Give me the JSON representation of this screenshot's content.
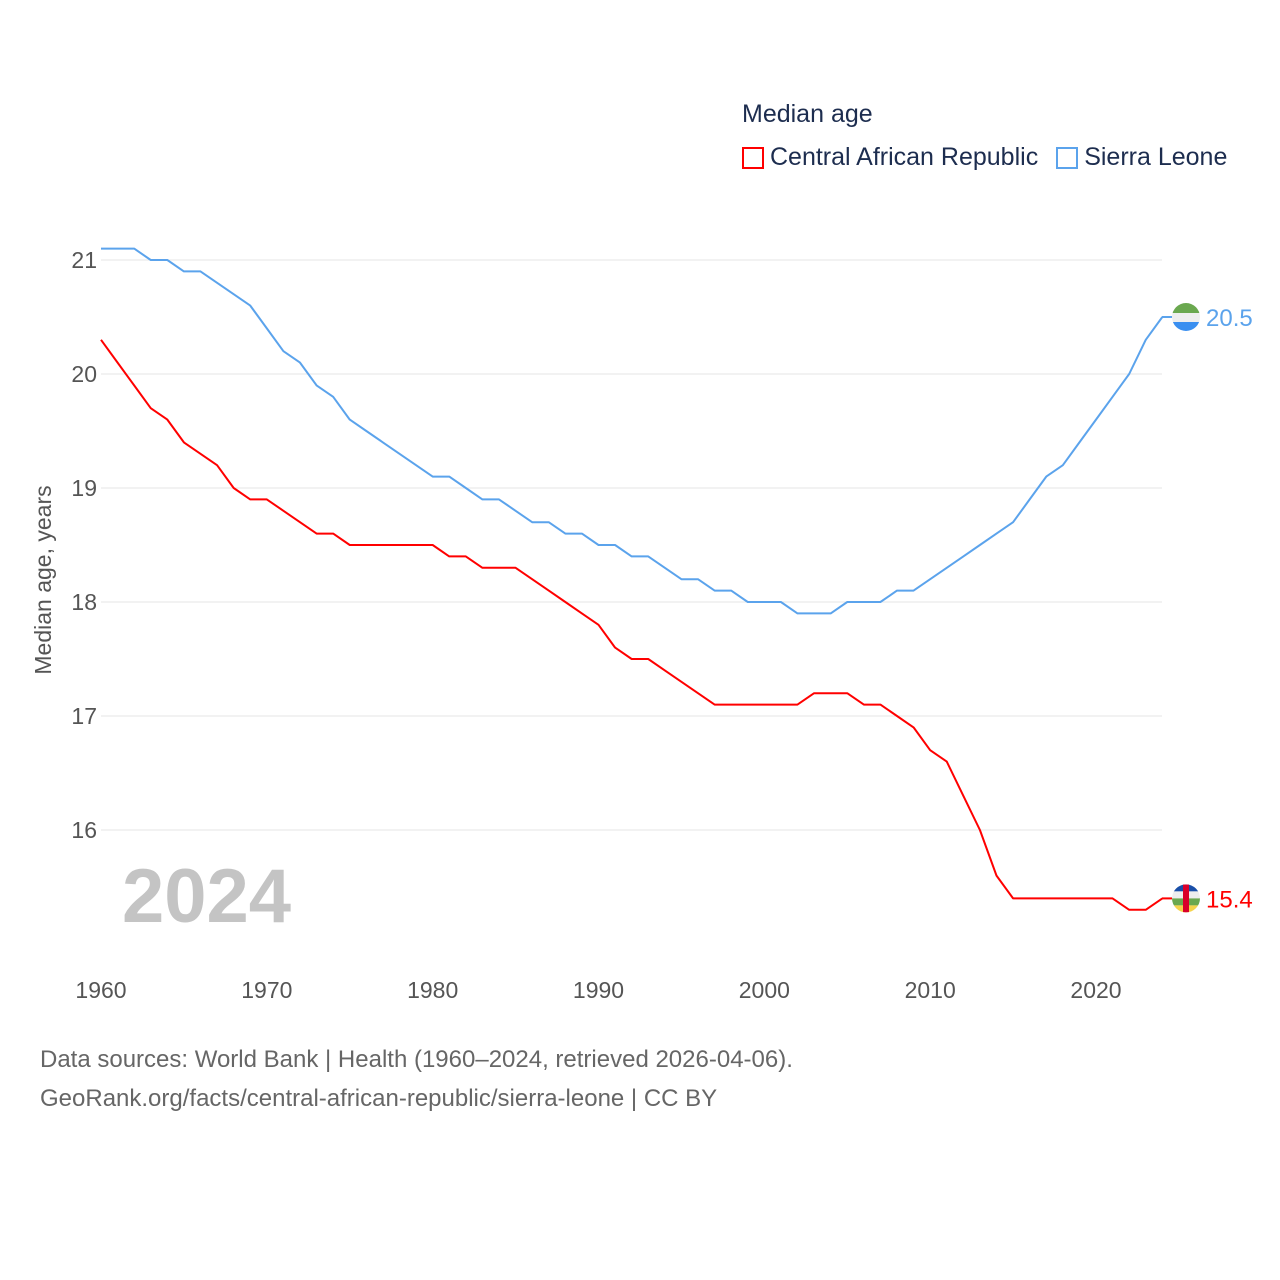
{
  "chart_data": {
    "type": "line",
    "title": "Median age",
    "xlabel": "",
    "ylabel": "Median age, years",
    "xlim": [
      1960,
      2024
    ],
    "ylim": [
      15,
      21.3
    ],
    "x_ticks": [
      1960,
      1970,
      1980,
      1990,
      2000,
      2010,
      2020
    ],
    "y_ticks": [
      16,
      17,
      18,
      19,
      20,
      21
    ],
    "grid": true,
    "legend_placement": "top-right",
    "current_year_label": "2024",
    "x": [
      1960,
      1961,
      1962,
      1963,
      1964,
      1965,
      1966,
      1967,
      1968,
      1969,
      1970,
      1971,
      1972,
      1973,
      1974,
      1975,
      1976,
      1977,
      1978,
      1979,
      1980,
      1981,
      1982,
      1983,
      1984,
      1985,
      1986,
      1987,
      1988,
      1989,
      1990,
      1991,
      1992,
      1993,
      1994,
      1995,
      1996,
      1997,
      1998,
      1999,
      2000,
      2001,
      2002,
      2003,
      2004,
      2005,
      2006,
      2007,
      2008,
      2009,
      2010,
      2011,
      2012,
      2013,
      2014,
      2015,
      2016,
      2017,
      2018,
      2019,
      2020,
      2021,
      2022,
      2023,
      2024
    ],
    "series": [
      {
        "name": "Central African Republic",
        "color": "#ff0000",
        "end_label": "15.4",
        "values": [
          20.3,
          20.1,
          19.9,
          19.7,
          19.6,
          19.4,
          19.3,
          19.2,
          19.0,
          18.9,
          18.9,
          18.8,
          18.7,
          18.6,
          18.6,
          18.5,
          18.5,
          18.5,
          18.5,
          18.5,
          18.5,
          18.4,
          18.4,
          18.3,
          18.3,
          18.3,
          18.2,
          18.1,
          18.0,
          17.9,
          17.8,
          17.6,
          17.5,
          17.5,
          17.4,
          17.3,
          17.2,
          17.1,
          17.1,
          17.1,
          17.1,
          17.1,
          17.1,
          17.2,
          17.2,
          17.2,
          17.1,
          17.1,
          17.0,
          16.9,
          16.7,
          16.6,
          16.3,
          16.0,
          15.6,
          15.4,
          15.4,
          15.4,
          15.4,
          15.4,
          15.4,
          15.4,
          15.3,
          15.3,
          15.4
        ]
      },
      {
        "name": "Sierra Leone",
        "color": "#5ba3ec",
        "end_label": "20.5",
        "values": [
          21.1,
          21.1,
          21.1,
          21.0,
          21.0,
          20.9,
          20.9,
          20.8,
          20.7,
          20.6,
          20.4,
          20.2,
          20.1,
          19.9,
          19.8,
          19.6,
          19.5,
          19.4,
          19.3,
          19.2,
          19.1,
          19.1,
          19.0,
          18.9,
          18.9,
          18.8,
          18.7,
          18.7,
          18.6,
          18.6,
          18.5,
          18.5,
          18.4,
          18.4,
          18.3,
          18.2,
          18.2,
          18.1,
          18.1,
          18.0,
          18.0,
          18.0,
          17.9,
          17.9,
          17.9,
          18.0,
          18.0,
          18.0,
          18.1,
          18.1,
          18.2,
          18.3,
          18.4,
          18.5,
          18.6,
          18.7,
          18.9,
          19.1,
          19.2,
          19.4,
          19.6,
          19.8,
          20.0,
          20.3,
          20.5
        ]
      }
    ]
  },
  "footer": {
    "line1": "Data sources: World Bank | Health (1960–2024, retrieved 2026-04-06).",
    "line2": "GeoRank.org/facts/central-african-republic/sierra-leone | CC BY"
  }
}
